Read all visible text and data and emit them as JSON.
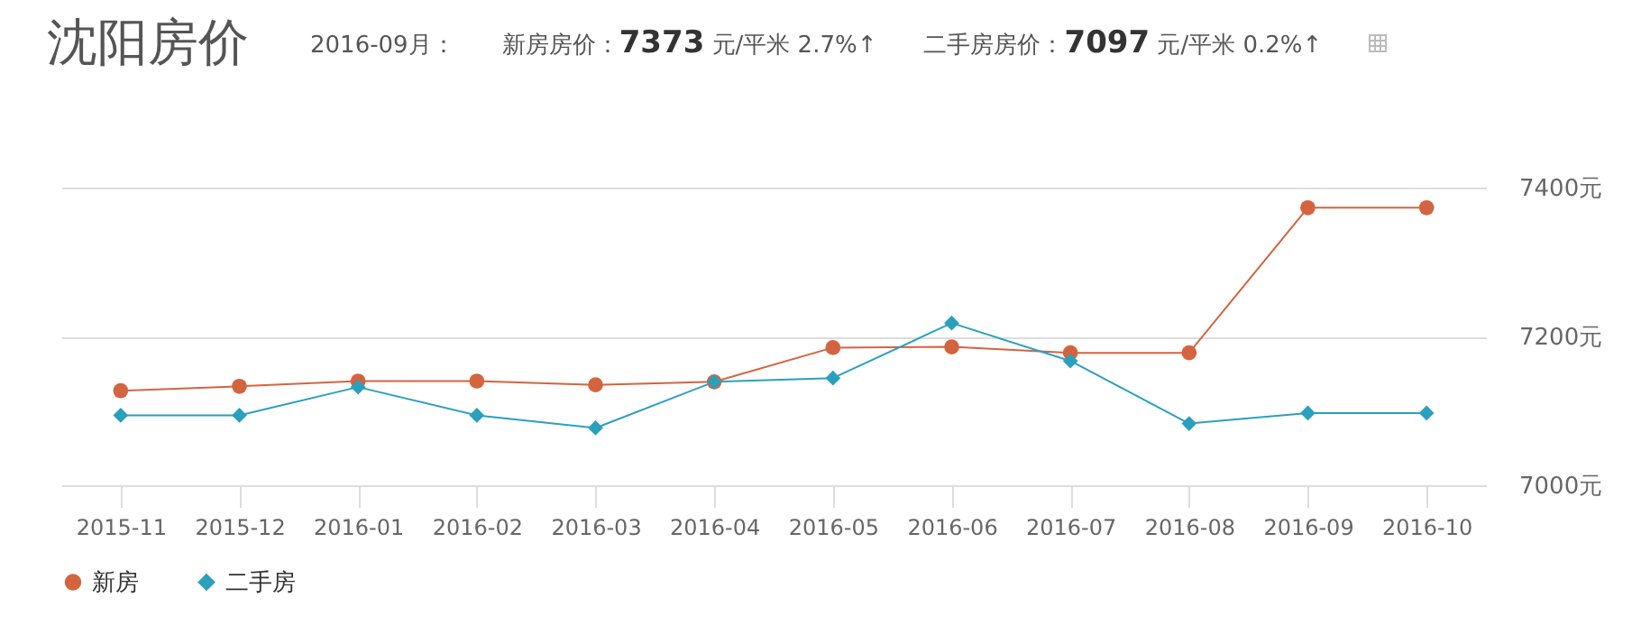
{
  "chart_data": {
    "type": "line",
    "title": "沈阳房价",
    "annotations": [
      "2016-09月：",
      "新房房价：7373 元/平米 2.7%↑",
      "二手房房价：7097 元/平米 0.2%↑"
    ],
    "categories": [
      "2015-11",
      "2015-12",
      "2016-01",
      "2016-02",
      "2016-03",
      "2016-04",
      "2016-05",
      "2016-06",
      "2016-07",
      "2016-08",
      "2016-09",
      "2016-10"
    ],
    "series": [
      {
        "name": "新房",
        "color": "#d4643f",
        "marker": "circle",
        "values": [
          7127,
          7133,
          7140,
          7140,
          7135,
          7139,
          7185,
          7186,
          7178,
          7178,
          7373,
          7373
        ]
      },
      {
        "name": "二手房",
        "color": "#2aa0bd",
        "marker": "diamond",
        "values": [
          7094,
          7094,
          7132,
          7094,
          7077,
          7139,
          7144,
          7218,
          7167,
          7083,
          7097,
          7097
        ]
      }
    ],
    "ylim": [
      7000,
      7400
    ],
    "yticks": [
      {
        "value": 7000,
        "label": "7000元"
      },
      {
        "value": 7200,
        "label": "7200元"
      },
      {
        "value": 7400,
        "label": "7400元"
      }
    ],
    "grid": "y",
    "legend": "bottom",
    "line_style": "solid"
  }
}
